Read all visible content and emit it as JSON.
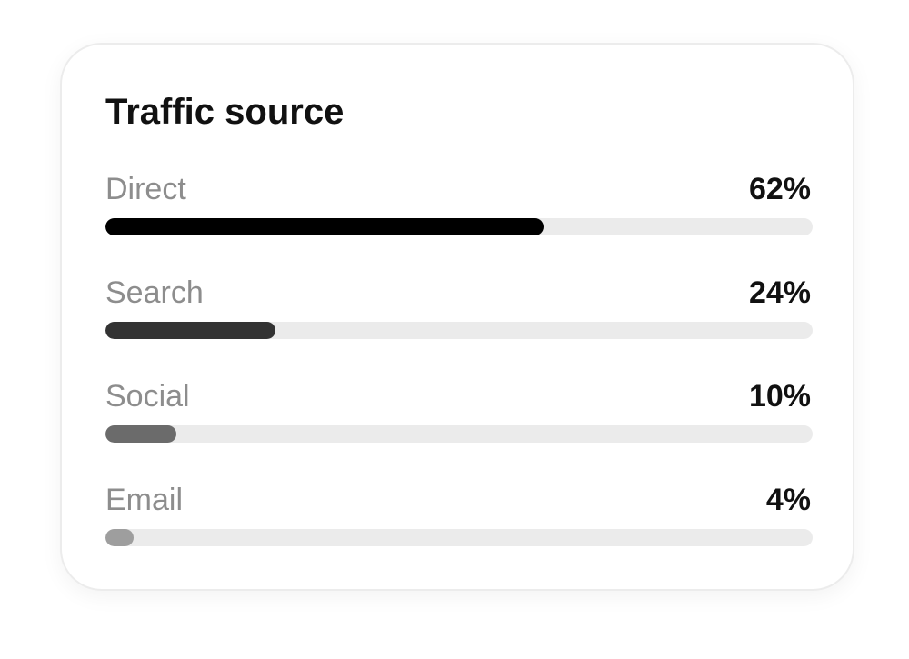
{
  "card": {
    "title": "Traffic source"
  },
  "sources": [
    {
      "label": "Direct",
      "value_text": "62%",
      "fraction": 0.62,
      "color": "#000000"
    },
    {
      "label": "Search",
      "value_text": "24%",
      "fraction": 0.24,
      "color": "#333333"
    },
    {
      "label": "Social",
      "value_text": "10%",
      "fraction": 0.1,
      "color": "#6b6b6b"
    },
    {
      "label": "Email",
      "value_text": "4%",
      "fraction": 0.04,
      "color": "#9e9e9e"
    }
  ]
}
